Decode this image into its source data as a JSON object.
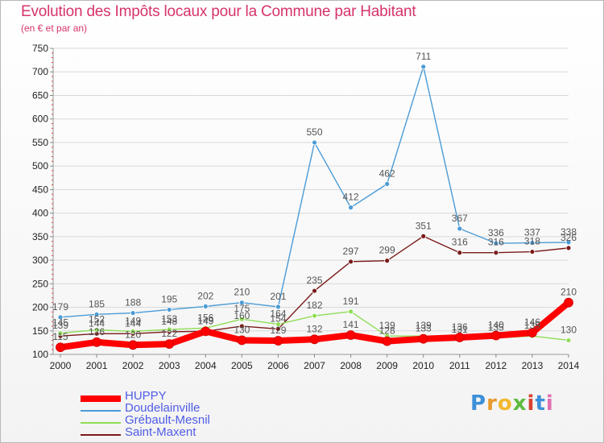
{
  "title": "Evolution des Impôts locaux pour la Commune par Habitant",
  "subtitle": "(en € et par an)",
  "brand": "Proxiti",
  "chart_data": {
    "type": "line",
    "x": [
      2000,
      2001,
      2002,
      2003,
      2004,
      2005,
      2006,
      2007,
      2008,
      2009,
      2010,
      2011,
      2012,
      2013,
      2014
    ],
    "ylim": [
      100,
      750
    ],
    "yticks": [
      100,
      150,
      200,
      250,
      300,
      350,
      400,
      450,
      500,
      550,
      600,
      650,
      700,
      750
    ],
    "grid": "horizontal",
    "legend_position": "bottom-left",
    "series": [
      {
        "name": "HUPPY",
        "color": "#ff0000",
        "values": [
          115,
          126,
          120,
          122,
          149,
          130,
          129,
          132,
          141,
          128,
          133,
          136,
          140,
          146,
          210
        ],
        "labels": [
          "115",
          "126",
          "120",
          "122",
          "149",
          "130",
          "129",
          "132",
          "141",
          "128",
          "133",
          "136",
          "140",
          "146",
          "210"
        ]
      },
      {
        "name": "Doudelainville",
        "color": "#4b9bd6",
        "values": [
          179,
          185,
          188,
          195,
          202,
          210,
          201,
          550,
          412,
          462,
          711,
          367,
          336,
          337,
          338
        ],
        "labels": [
          "179",
          "185",
          "188",
          "195",
          "202",
          "210",
          "201",
          "550",
          "412",
          "462",
          "711",
          "367",
          "336",
          "337",
          "338"
        ]
      },
      {
        "name": "Grébault-Mesnil",
        "color": "#8fdd55",
        "values": [
          145,
          152,
          149,
          153,
          156,
          175,
          164,
          182,
          191,
          139,
          139,
          131,
          135,
          139,
          130
        ],
        "labels": [
          "145",
          "152",
          "149",
          "153",
          "156",
          "175",
          "164",
          "182",
          "191",
          "139",
          "139",
          "131",
          "135",
          "139",
          "130"
        ]
      },
      {
        "name": "Saint-Maxent",
        "color": "#7a1a1a",
        "values": [
          139,
          144,
          144,
          148,
          149,
          160,
          154,
          235,
          297,
          299,
          351,
          316,
          316,
          318,
          326
        ],
        "labels": [
          "139",
          "144",
          "144",
          "148",
          "149",
          "160",
          "154",
          "235",
          "297",
          "299",
          "351",
          "316",
          "316",
          "318",
          "326"
        ]
      }
    ]
  }
}
